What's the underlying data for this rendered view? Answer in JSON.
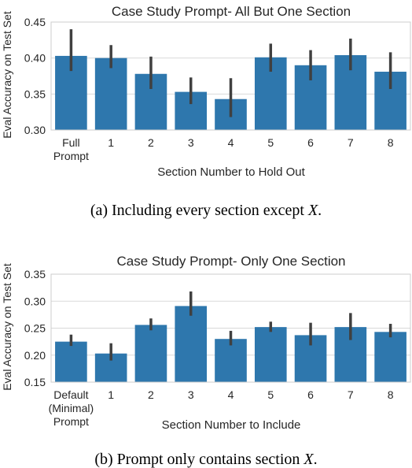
{
  "chart_data": [
    {
      "type": "bar",
      "title": "Case Study Prompt- All But One Section",
      "xlabel": "Section Number to Hold Out",
      "ylabel": "Eval Accuracy on Test Set",
      "categories": [
        "Full\nPrompt",
        "1",
        "2",
        "3",
        "4",
        "5",
        "6",
        "7",
        "8"
      ],
      "values": [
        0.403,
        0.4,
        0.378,
        0.353,
        0.343,
        0.401,
        0.39,
        0.404,
        0.381
      ],
      "error_low": [
        0.382,
        0.386,
        0.357,
        0.336,
        0.318,
        0.381,
        0.369,
        0.383,
        0.357
      ],
      "error_high": [
        0.44,
        0.418,
        0.402,
        0.373,
        0.372,
        0.42,
        0.411,
        0.427,
        0.408
      ],
      "ylim": [
        0.3,
        0.45
      ],
      "yticks": [
        "0.30",
        "0.35",
        "0.40",
        "0.45"
      ],
      "grid": true,
      "bar_color": "#2e77ad",
      "error_color": "#404040",
      "caption": "(a) Including every section except X."
    },
    {
      "type": "bar",
      "title": "Case Study Prompt- Only One Section",
      "xlabel": "Section Number to Include",
      "ylabel": "Eval Accuracy on Test Set",
      "categories": [
        "Default\n(Minimal)\nPrompt",
        "1",
        "2",
        "3",
        "4",
        "5",
        "6",
        "7",
        "8"
      ],
      "values": [
        0.225,
        0.203,
        0.256,
        0.291,
        0.23,
        0.252,
        0.237,
        0.252,
        0.243
      ],
      "error_low": [
        0.217,
        0.19,
        0.246,
        0.273,
        0.218,
        0.243,
        0.218,
        0.228,
        0.233
      ],
      "error_high": [
        0.238,
        0.222,
        0.268,
        0.318,
        0.245,
        0.262,
        0.26,
        0.278,
        0.258
      ],
      "ylim": [
        0.15,
        0.35
      ],
      "yticks": [
        "0.15",
        "0.20",
        "0.25",
        "0.30",
        "0.35"
      ],
      "grid": true,
      "bar_color": "#2e77ad",
      "error_color": "#404040",
      "caption": "(b) Prompt only contains section X."
    }
  ]
}
